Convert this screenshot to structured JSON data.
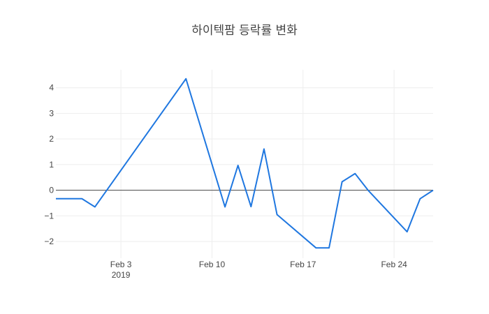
{
  "chart_data": {
    "type": "line",
    "title": "하이텍팜 등락률 변화",
    "xlabel": "",
    "ylabel": "",
    "x": [
      "2019-01-29",
      "2019-01-30",
      "2019-01-31",
      "2019-02-01",
      "2019-02-08",
      "2019-02-11",
      "2019-02-12",
      "2019-02-13",
      "2019-02-14",
      "2019-02-15",
      "2019-02-18",
      "2019-02-19",
      "2019-02-20",
      "2019-02-21",
      "2019-02-22",
      "2019-02-25",
      "2019-02-26",
      "2019-02-27"
    ],
    "series": [
      {
        "values": [
          -0.33,
          -0.33,
          -0.33,
          -0.65,
          4.35,
          -0.65,
          0.97,
          -0.64,
          1.61,
          -0.95,
          -2.25,
          -2.25,
          0.33,
          0.65,
          0.0,
          -1.62,
          -0.33,
          0.0
        ],
        "color": "#1f77e0"
      }
    ],
    "ylim": [
      -2.65,
      4.7
    ],
    "xlim": [
      "2019-01-29",
      "2019-02-27"
    ],
    "grid": true,
    "zero_line": true,
    "x_ticks": [
      {
        "date": "2019-02-03",
        "label": "Feb 3",
        "sublabel": "2019"
      },
      {
        "date": "2019-02-10",
        "label": "Feb 10",
        "sublabel": ""
      },
      {
        "date": "2019-02-17",
        "label": "Feb 17",
        "sublabel": ""
      },
      {
        "date": "2019-02-24",
        "label": "Feb 24",
        "sublabel": ""
      }
    ],
    "y_ticks": [
      {
        "value": -2,
        "label": "−2"
      },
      {
        "value": -1,
        "label": "−1"
      },
      {
        "value": 0,
        "label": "0"
      },
      {
        "value": 1,
        "label": "1"
      },
      {
        "value": 2,
        "label": "2"
      },
      {
        "value": 3,
        "label": "3"
      },
      {
        "value": 4,
        "label": "4"
      }
    ],
    "colors": {
      "grid": "#eeeeee",
      "zero_line": "#444444",
      "text": "#444444"
    }
  }
}
